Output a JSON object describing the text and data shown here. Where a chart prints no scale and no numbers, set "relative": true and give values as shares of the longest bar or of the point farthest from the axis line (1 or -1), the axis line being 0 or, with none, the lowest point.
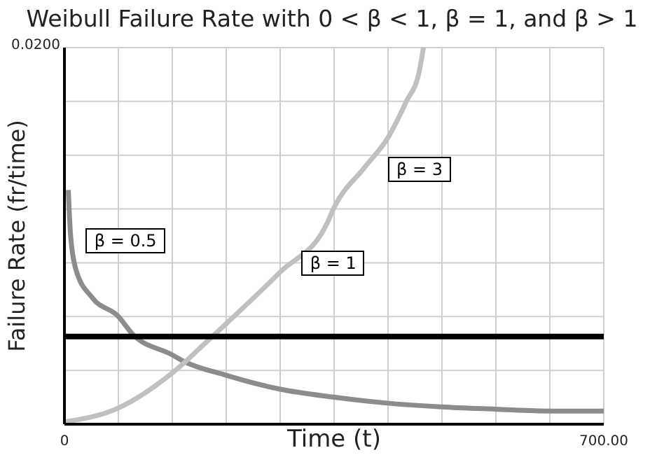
{
  "chart_data": {
    "type": "line",
    "title": "Weibull Failure Rate with 0 < β < 1, β = 1, and β > 1",
    "xlabel": "Time (t)",
    "ylabel": "Failure Rate (fr/time)",
    "relative": true,
    "annotations": [
      "0.0200"
    ],
    "series": [
      {
        "name": "β = 0.5",
        "color": "#8c8c8c",
        "x": [
          5,
          8,
          15,
          36.5,
          70,
          88,
          140,
          152,
          210,
          280,
          349,
          419,
          489,
          559,
          629,
          700
        ],
        "values": [
          0.622,
          0.501,
          0.41,
          0.335,
          0.286,
          0.24,
          0.184,
          0.17,
          0.13,
          0.093,
          0.072,
          0.056,
          0.046,
          0.04,
          0.035,
          0.035
        ]
      },
      {
        "name": "β = 3",
        "color": "#c0c0c0",
        "x": [
          0,
          70,
          140,
          192,
          210,
          280,
          341,
          349,
          390,
          419,
          444,
          460,
          466
        ],
        "values": [
          0.006,
          0.043,
          0.136,
          0.233,
          0.267,
          0.404,
          0.534,
          0.571,
          0.683,
          0.758,
          0.858,
          0.932,
          1
        ]
      },
      {
        "name": "β = 1",
        "color": "#000000",
        "x": [
          0,
          700
        ],
        "values": [
          0.233,
          0.233
        ]
      }
    ],
    "xlim": [
      0,
      700
    ],
    "xticks": [
      {
        "value": 0,
        "label": "0"
      },
      {
        "value": 70,
        "label": null
      },
      {
        "value": 140,
        "label": null
      },
      {
        "value": 210,
        "label": null
      },
      {
        "value": 280,
        "label": null
      },
      {
        "value": 350,
        "label": null
      },
      {
        "value": 420,
        "label": null
      },
      {
        "value": 490,
        "label": null
      },
      {
        "value": 560,
        "label": null
      },
      {
        "value": 630,
        "label": null
      },
      {
        "value": 700,
        "label": "700.00"
      }
    ],
    "grid": true,
    "legend": false,
    "marker": "none",
    "line_style": "solid"
  }
}
